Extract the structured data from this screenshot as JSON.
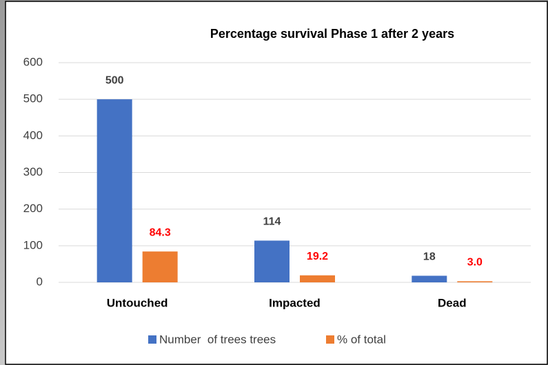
{
  "chart_data": {
    "type": "bar",
    "title": "Percentage survival Phase 1 after 2 years",
    "categories": [
      "Untouched",
      "Impacted",
      "Dead"
    ],
    "series": [
      {
        "name": "Number  of trees trees",
        "color": "#4472c4",
        "label_color": "#404040",
        "values": [
          500,
          114,
          18
        ]
      },
      {
        "name": "% of total",
        "color": "#ed7d31",
        "label_color": "#ff0000",
        "values": [
          84.3,
          19.2,
          3.0
        ],
        "value_labels": [
          "84.3",
          "19.2",
          "3.0"
        ]
      }
    ],
    "ylim": [
      0,
      600
    ],
    "yticks": [
      0,
      100,
      200,
      300,
      400,
      500,
      600
    ],
    "grid": true,
    "legend": "bottom"
  }
}
